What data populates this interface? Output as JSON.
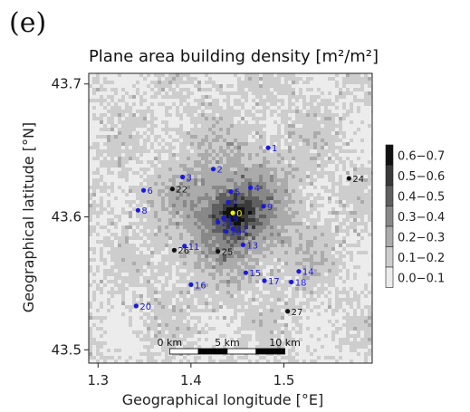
{
  "panel_label": "(e)",
  "chart_data": {
    "type": "heatmap",
    "title": "Plane area building density [m²/m²]",
    "xlabel": "Geographical longitude [°E]",
    "ylabel": "Geographical latitude [°N]",
    "xlim": [
      1.29,
      1.595
    ],
    "ylim": [
      43.49,
      43.708
    ],
    "xticks": [
      {
        "value": 1.3,
        "label": "1.3"
      },
      {
        "value": 1.4,
        "label": "1.4"
      },
      {
        "value": 1.5,
        "label": "1.5"
      }
    ],
    "yticks": [
      {
        "value": 43.5,
        "label": "43.5"
      },
      {
        "value": 43.6,
        "label": "43.6"
      },
      {
        "value": 43.7,
        "label": "43.7"
      }
    ],
    "city_center": {
      "lon": 1.444,
      "lat": 43.604
    },
    "legend": {
      "placement": "right",
      "bins": [
        {
          "label": "0.6−0.7",
          "color": "#111111"
        },
        {
          "label": "0.5−0.6",
          "color": "#3a3a3a"
        },
        {
          "label": "0.4−0.5",
          "color": "#5f5f5f"
        },
        {
          "label": "0.3−0.4",
          "color": "#888888"
        },
        {
          "label": "0.2−0.3",
          "color": "#ababab"
        },
        {
          "label": "0.1−0.2",
          "color": "#cdcdcd"
        },
        {
          "label": "0.0−0.1",
          "color": "#ececec"
        }
      ]
    },
    "scale_bar": {
      "labels": [
        "0 km",
        "5 km",
        "10 km"
      ],
      "km_per_segment": 2.5
    },
    "stations": [
      {
        "id": "0",
        "lon": 1.445,
        "lat": 43.603,
        "group": "center"
      },
      {
        "id": "1",
        "lon": 1.483,
        "lat": 43.652,
        "group": "blue"
      },
      {
        "id": "2",
        "lon": 1.424,
        "lat": 43.636,
        "group": "blue"
      },
      {
        "id": "3",
        "lon": 1.391,
        "lat": 43.63,
        "group": "blue"
      },
      {
        "id": "4",
        "lon": 1.464,
        "lat": 43.622,
        "group": "blue"
      },
      {
        "id": "5",
        "lon": 1.443,
        "lat": 43.619,
        "group": "blue"
      },
      {
        "id": "6",
        "lon": 1.349,
        "lat": 43.62,
        "group": "blue"
      },
      {
        "id": "7",
        "lon": 1.44,
        "lat": 43.611,
        "group": "blue"
      },
      {
        "id": "8",
        "lon": 1.343,
        "lat": 43.605,
        "group": "blue"
      },
      {
        "id": "9",
        "lon": 1.478,
        "lat": 43.608,
        "group": "blue"
      },
      {
        "id": "10",
        "lon": 1.438,
        "lat": 43.589,
        "group": "blue"
      },
      {
        "id": "11",
        "lon": 1.393,
        "lat": 43.578,
        "group": "blue"
      },
      {
        "id": "12",
        "lon": 1.445,
        "lat": 43.591,
        "group": "blue"
      },
      {
        "id": "13",
        "lon": 1.456,
        "lat": 43.579,
        "group": "blue"
      },
      {
        "id": "14",
        "lon": 1.516,
        "lat": 43.559,
        "group": "blue"
      },
      {
        "id": "15",
        "lon": 1.459,
        "lat": 43.558,
        "group": "blue"
      },
      {
        "id": "16",
        "lon": 1.4,
        "lat": 43.549,
        "group": "blue"
      },
      {
        "id": "17",
        "lon": 1.479,
        "lat": 43.552,
        "group": "blue"
      },
      {
        "id": "18",
        "lon": 1.508,
        "lat": 43.551,
        "group": "blue"
      },
      {
        "id": "19",
        "lon": 1.435,
        "lat": 43.599,
        "group": "blue"
      },
      {
        "id": "20",
        "lon": 1.341,
        "lat": 43.533,
        "group": "blue"
      },
      {
        "id": "21",
        "lon": 1.429,
        "lat": 43.596,
        "group": "blue"
      },
      {
        "id": "22",
        "lon": 1.38,
        "lat": 43.621,
        "group": "black"
      },
      {
        "id": "24",
        "lon": 1.57,
        "lat": 43.629,
        "group": "black"
      },
      {
        "id": "25",
        "lon": 1.429,
        "lat": 43.574,
        "group": "black"
      },
      {
        "id": "26",
        "lon": 1.382,
        "lat": 43.575,
        "group": "black"
      },
      {
        "id": "27",
        "lon": 1.504,
        "lat": 43.529,
        "group": "black"
      }
    ],
    "colors": {
      "blue_station": "#1a1adb",
      "black_station": "#111111",
      "center_station": "#f2f200"
    },
    "grid": false
  }
}
